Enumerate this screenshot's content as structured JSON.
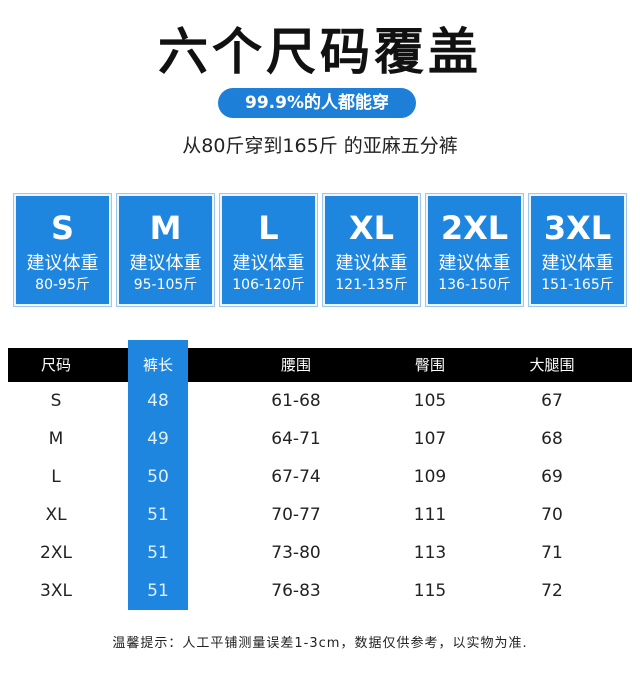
{
  "header": {
    "title": "六个尺码覆盖",
    "badge": "99.9%的人都能穿",
    "subtitle": "从80斤穿到165斤 的亚麻五分裤"
  },
  "sizes": [
    {
      "size": "S",
      "advice": "建议体重",
      "range": "80-95斤"
    },
    {
      "size": "M",
      "advice": "建议体重",
      "range": "95-105斤"
    },
    {
      "size": "L",
      "advice": "建议体重",
      "range": "106-120斤"
    },
    {
      "size": "XL",
      "advice": "建议体重",
      "range": "121-135斤"
    },
    {
      "size": "2XL",
      "advice": "建议体重",
      "range": "136-150斤"
    },
    {
      "size": "3XL",
      "advice": "建议体重",
      "range": "151-165斤"
    }
  ],
  "table": {
    "headers": [
      "尺码",
      "裤长",
      "腰围",
      "臀围",
      "大腿围"
    ],
    "rows": [
      [
        "S",
        "48",
        "61-68",
        "105",
        "67"
      ],
      [
        "M",
        "49",
        "64-71",
        "107",
        "68"
      ],
      [
        "L",
        "50",
        "67-74",
        "109",
        "69"
      ],
      [
        "XL",
        "51",
        "70-77",
        "111",
        "70"
      ],
      [
        "2XL",
        "51",
        "73-80",
        "113",
        "71"
      ],
      [
        "3XL",
        "51",
        "76-83",
        "115",
        "72"
      ]
    ]
  },
  "note": "温馨提示：人工平铺测量误差1-3cm，数据仅供参考，以实物为准.",
  "colors": {
    "accent": "#1f86e0",
    "header_bg": "#000000"
  }
}
